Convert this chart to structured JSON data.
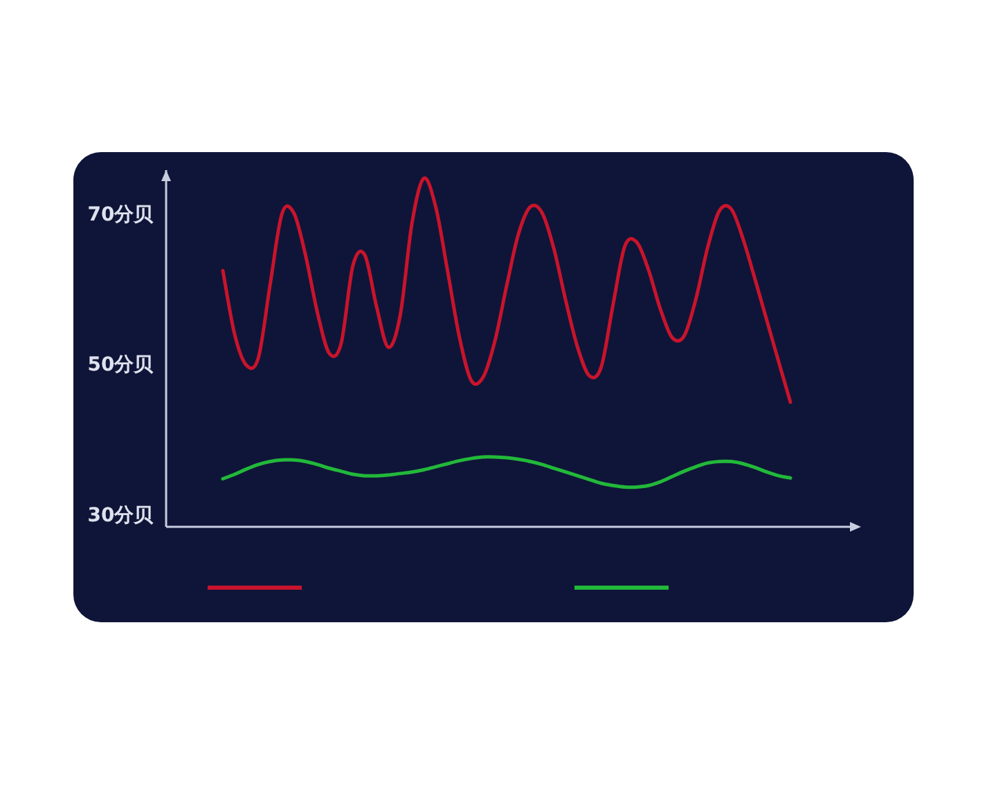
{
  "chart_data": {
    "type": "line",
    "categories": [
      null,
      null,
      null,
      null,
      null,
      null,
      null,
      null,
      null,
      null,
      null,
      null,
      null,
      null,
      null,
      null,
      null,
      null,
      null,
      null,
      null,
      null,
      null,
      null,
      null,
      null,
      null,
      null,
      null,
      null,
      null,
      null,
      null,
      null,
      null,
      null,
      null,
      null,
      null,
      null,
      null,
      null,
      null,
      null,
      null,
      null,
      null,
      null,
      null
    ],
    "series": [
      {
        "color": "#c8142c",
        "values": [
          62.6,
          54.1,
          50.0,
          51.0,
          60.8,
          70.2,
          70.3,
          64.6,
          57.0,
          51.6,
          52.9,
          63.3,
          64.7,
          57.8,
          52.4,
          56.7,
          69.0,
          74.9,
          71.1,
          62.6,
          53.8,
          48.0,
          48.4,
          53.2,
          60.6,
          67.5,
          71.1,
          70.3,
          65.5,
          58.6,
          52.4,
          48.6,
          49.8,
          58.1,
          65.9,
          66.4,
          62.7,
          57.5,
          53.7,
          53.9,
          58.8,
          65.7,
          70.6,
          70.8,
          66.8,
          61.5,
          56.0,
          50.5,
          45.1
        ]
      },
      {
        "color": "#22b83a",
        "values": [
          34.9,
          35.5,
          36.2,
          36.8,
          37.2,
          37.4,
          37.4,
          37.2,
          36.8,
          36.3,
          35.9,
          35.5,
          35.3,
          35.3,
          35.4,
          35.6,
          35.8,
          36.1,
          36.5,
          36.9,
          37.3,
          37.6,
          37.8,
          37.8,
          37.7,
          37.5,
          37.2,
          36.8,
          36.3,
          35.8,
          35.3,
          34.8,
          34.3,
          34.0,
          33.8,
          33.8,
          34.0,
          34.5,
          35.2,
          35.9,
          36.5,
          37.0,
          37.2,
          37.2,
          36.9,
          36.4,
          35.8,
          35.3,
          35.0
        ]
      }
    ],
    "ylim": [
      28.5,
      76
    ],
    "yticks": [
      {
        "value": 30,
        "label": "30分贝"
      },
      {
        "value": 50,
        "label": "50分贝"
      },
      {
        "value": 70,
        "label": "70分贝"
      }
    ],
    "tick_labels": "y",
    "marker": "none",
    "line_style": "solid",
    "grid": false
  }
}
